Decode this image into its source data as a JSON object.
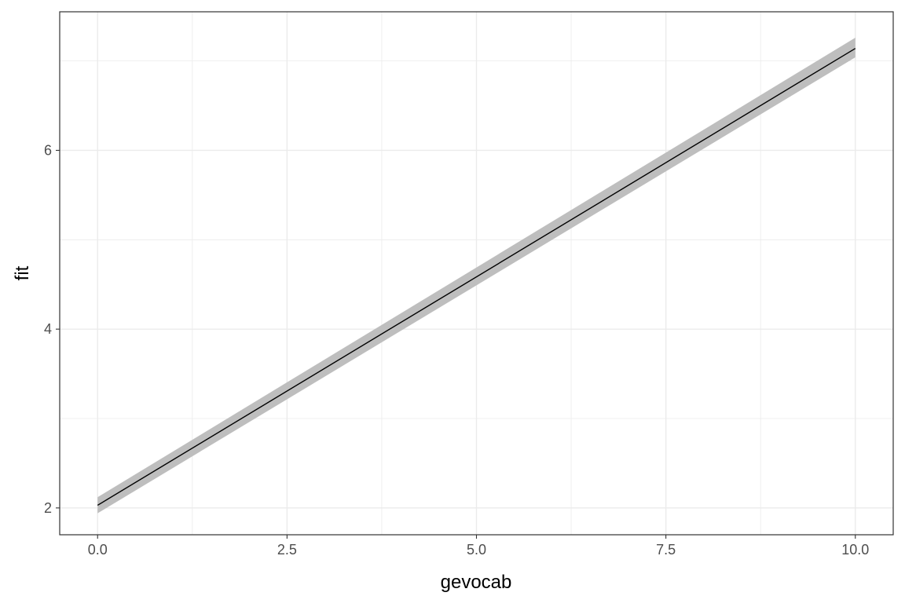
{
  "chart_data": {
    "type": "line",
    "title": "",
    "xlabel": "gevocab",
    "ylabel": "fit",
    "xlim": [
      -0.5,
      10.5
    ],
    "ylim": [
      1.7,
      7.55
    ],
    "x_ticks": [
      0.0,
      2.5,
      5.0,
      7.5,
      10.0
    ],
    "x_tick_labels": [
      "0.0",
      "2.5",
      "5.0",
      "7.5",
      "10.0"
    ],
    "y_ticks": [
      2,
      4,
      6
    ],
    "y_tick_labels": [
      "2",
      "4",
      "6"
    ],
    "x_minor_gridlines": [
      1.25,
      3.75,
      6.25,
      8.75
    ],
    "y_minor_gridlines": [
      3,
      5,
      7
    ],
    "grid": true,
    "legend": "none",
    "series": [
      {
        "x": [
          0,
          10
        ],
        "y": [
          2.03,
          7.14
        ],
        "lower": [
          1.94,
          7.04
        ],
        "upper": [
          2.12,
          7.26
        ]
      }
    ],
    "colors": {
      "line": "#000000",
      "ribbon": "#bebebe",
      "grid": "#ebebeb",
      "panel_border": "#333333",
      "tick_label": "#4d4d4d",
      "axis_title": "#000000"
    }
  }
}
